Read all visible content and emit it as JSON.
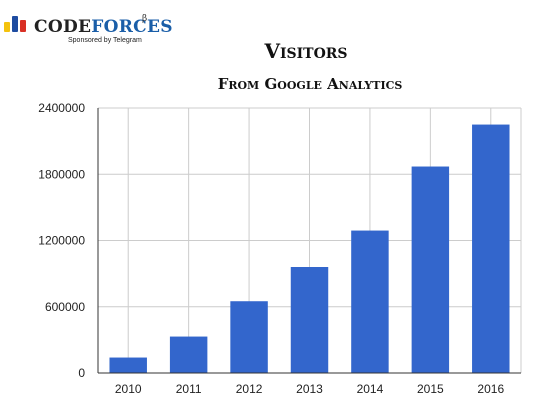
{
  "logo": {
    "name_part1": "CODE",
    "name_part2": "FORCES",
    "beta": "β",
    "sponsor": "Sponsored by Telegram",
    "icon_colors": [
      "#f4c20d",
      "#1e4ca1",
      "#d93025"
    ]
  },
  "chart_data": {
    "type": "bar",
    "title": "Visitors",
    "subtitle": "From Google Analytics",
    "categories": [
      "2010",
      "2011",
      "2012",
      "2013",
      "2014",
      "2015",
      "2016"
    ],
    "values": [
      140000,
      330000,
      650000,
      960000,
      1290000,
      1870000,
      2250000
    ],
    "ylim": [
      0,
      2400000
    ],
    "yticks": [
      0,
      600000,
      1200000,
      1800000,
      2400000
    ],
    "ytick_labels": [
      "0",
      "600000",
      "1200000",
      "1800000",
      "2400000"
    ],
    "xlabel": "",
    "ylabel": "",
    "grid": true,
    "bar_color": "#3366cc",
    "gridline_color": "#cccccc",
    "axis_color": "#333333"
  }
}
